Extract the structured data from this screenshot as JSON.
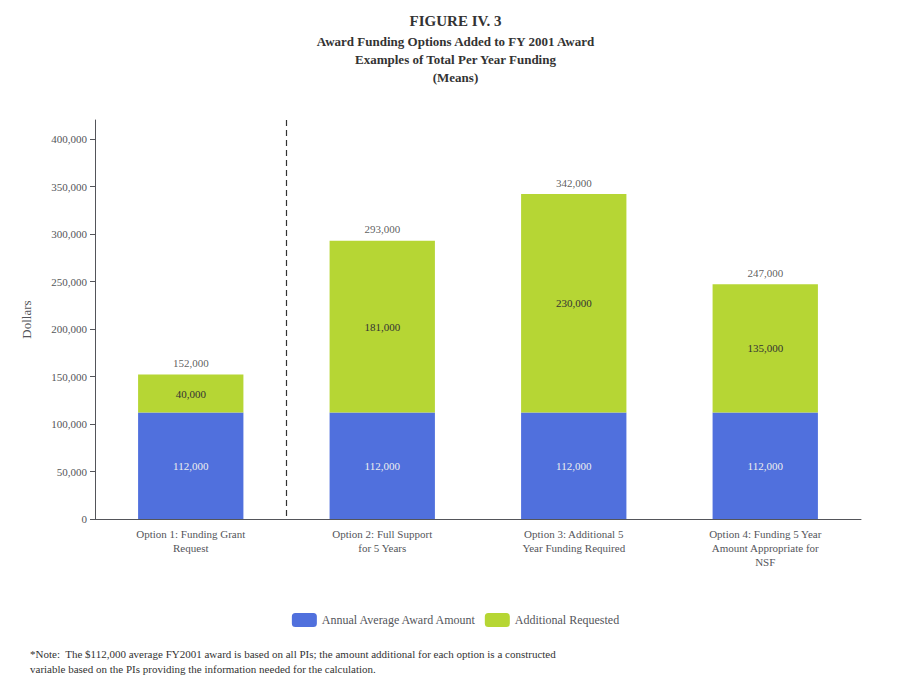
{
  "chart_data": {
    "type": "bar",
    "title": "FIGURE IV. 3",
    "subtitle": "Award Funding Options Added to FY 2001 Award\nExamples of Total Per Year Funding\n(Means)",
    "categories": [
      "Option 1: Funding Grant\nRequest",
      "Option 2: Full Support\nfor 5 Years",
      "Option 3: Additional 5\nYear Funding Required",
      "Option 4: Funding 5 Year\nAmount Appropriate for\nNSF"
    ],
    "series": [
      {
        "name": "Annual Average Award Amount",
        "values": [
          112000,
          112000,
          112000,
          112000
        ],
        "value_labels": [
          "112,000",
          "112,000",
          "112,000",
          "112,000"
        ]
      },
      {
        "name": "Additional Requested",
        "values": [
          40000,
          181000,
          230000,
          135000
        ],
        "value_labels": [
          "40,000",
          "181,000",
          "230,000",
          "135,000"
        ]
      }
    ],
    "totals": [
      152000,
      293000,
      342000,
      247000
    ],
    "total_labels": [
      "152,000",
      "293,000",
      "342,000",
      "247,000"
    ],
    "stacked": true,
    "data_labels": true,
    "ylabel": "Dollars",
    "ylim": [
      0,
      420000
    ],
    "yticks": [
      0,
      {
        "value": 50000,
        "label": "50,000"
      },
      {
        "value": 100000,
        "label": "100,000"
      },
      {
        "value": 150000,
        "label": "150,000"
      },
      {
        "value": 200000,
        "label": "200,000"
      },
      {
        "value": 250000,
        "label": "250,000"
      },
      {
        "value": 300000,
        "label": "300,000"
      },
      {
        "value": 350000,
        "label": "350,000"
      },
      {
        "value": 400000,
        "label": "400,000"
      }
    ],
    "grid": false,
    "legend": "bottom",
    "note": "*Note:  The $112,000 average FY2001 award is based on all PIs; the amount additional for each option is a constructed\nvariable based on the PIs providing the information needed for the calculation."
  }
}
